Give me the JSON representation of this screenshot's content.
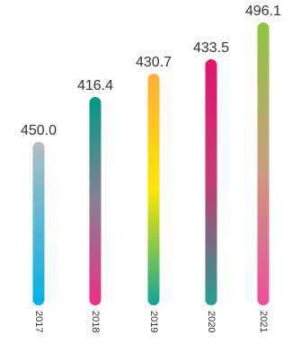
{
  "chart_data": {
    "type": "bar",
    "categories": [
      "2017",
      "2018",
      "2019",
      "2020",
      "2021"
    ],
    "values": [
      450.0,
      416.4,
      430.7,
      433.5,
      496.1
    ],
    "value_labels": [
      "450.0",
      "416.4",
      "430.7",
      "433.5",
      "496.1"
    ],
    "title": "",
    "xlabel": "",
    "ylabel": "",
    "grid": false,
    "legend": "none",
    "gradients": [
      [
        "#b3bec2",
        "#00b0e8"
      ],
      [
        "#009a8a",
        "#8a8090",
        "#ee2e83"
      ],
      [
        "#ffae3b",
        "#ffe800",
        "#10a697"
      ],
      [
        "#e3166d",
        "#c43b72",
        "#23a08e"
      ],
      [
        "#8cc63f",
        "#c99f7f",
        "#ee4d9b"
      ]
    ]
  }
}
